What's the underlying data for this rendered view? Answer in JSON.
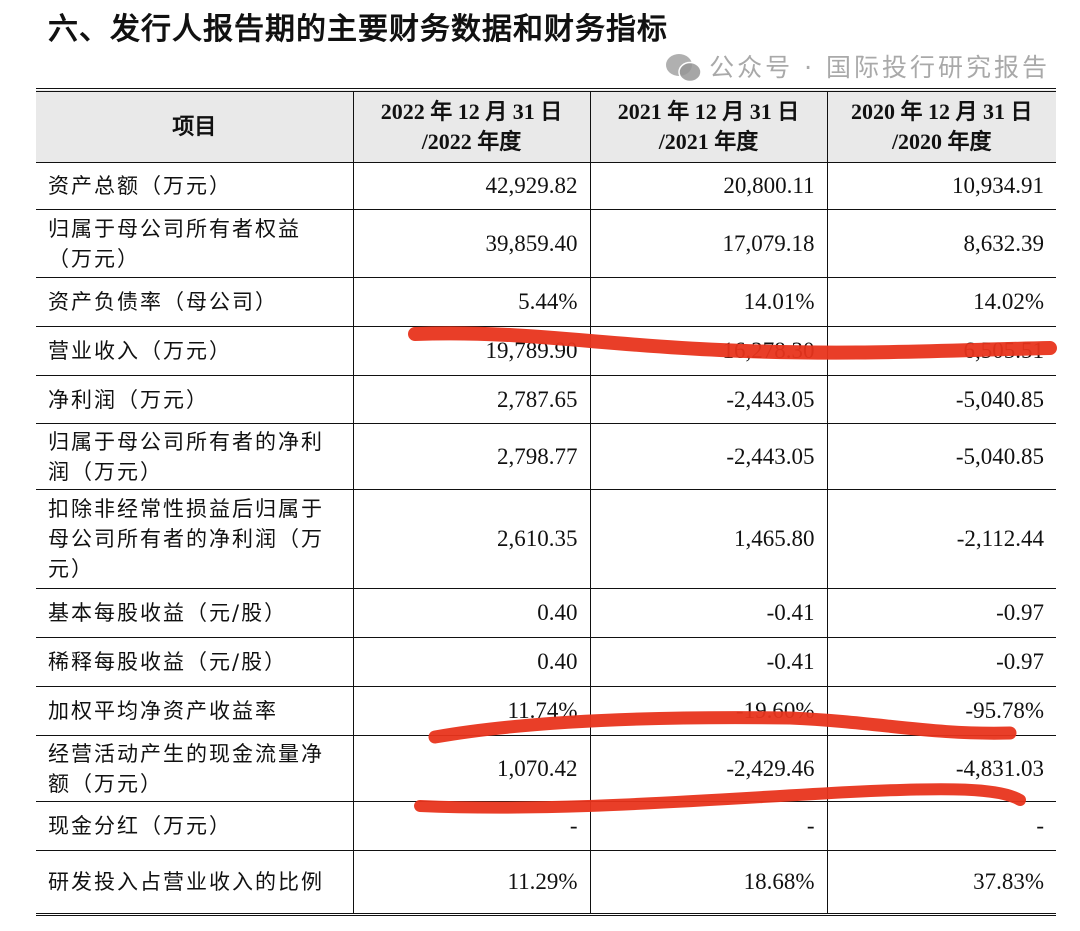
{
  "title": "六、发行人报告期的主要财务数据和财务指标",
  "table": {
    "headers": [
      "项目",
      "2022 年 12 月 31 日\n/2022 年度",
      "2021 年 12 月 31 日\n/2021 年度",
      "2020 年 12 月 31 日\n/2020 年度"
    ],
    "rows": [
      {
        "label": "资产总额（万元）",
        "values": [
          "42,929.82",
          "20,800.11",
          "10,934.91"
        ]
      },
      {
        "label": "归属于母公司所有者权益（万元）",
        "values": [
          "39,859.40",
          "17,079.18",
          "8,632.39"
        ]
      },
      {
        "label": "资产负债率（母公司）",
        "values": [
          "5.44%",
          "14.01%",
          "14.02%"
        ]
      },
      {
        "label": "营业收入（万元）",
        "values": [
          "19,789.90",
          "16,278.30",
          "6,505.51"
        ]
      },
      {
        "label": "净利润（万元）",
        "values": [
          "2,787.65",
          "-2,443.05",
          "-5,040.85"
        ]
      },
      {
        "label": "归属于母公司所有者的净利润（万元）",
        "values": [
          "2,798.77",
          "-2,443.05",
          "-5,040.85"
        ]
      },
      {
        "label": "扣除非经常性损益后归属于母公司所有者的净利润（万元）",
        "values": [
          "2,610.35",
          "1,465.80",
          "-2,112.44"
        ]
      },
      {
        "label": "基本每股收益（元/股）",
        "values": [
          "0.40",
          "-0.41",
          "-0.97"
        ]
      },
      {
        "label": "稀释每股收益（元/股）",
        "values": [
          "0.40",
          "-0.41",
          "-0.97"
        ]
      },
      {
        "label": "加权平均净资产收益率",
        "values": [
          "11.74%",
          "-19.60%",
          "-95.78%"
        ]
      },
      {
        "label": "经营活动产生的现金流量净额（万元）",
        "values": [
          "1,070.42",
          "-2,429.46",
          "-4,831.03"
        ]
      },
      {
        "label": "现金分红（万元）",
        "values": [
          "-",
          "-",
          "-"
        ]
      },
      {
        "label": "研发投入占营业收入的比例",
        "values": [
          "11.29%",
          "18.68%",
          "37.83%"
        ]
      }
    ]
  },
  "watermark": "公众号 · 国际投行研究报告",
  "colors": {
    "header_bg": "#e9e9e9",
    "annotation_red": "#e8341c"
  }
}
